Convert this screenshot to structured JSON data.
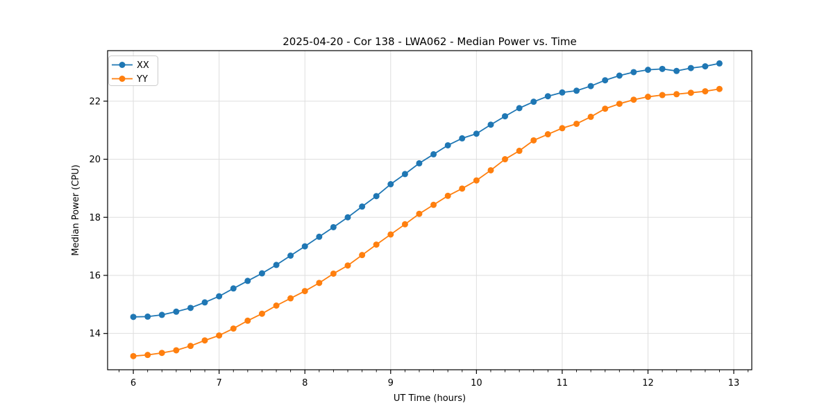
{
  "figure": {
    "background": "#ffffff",
    "grid_color": "#dedede",
    "spine_color": "#000000",
    "text_color": "#000000"
  },
  "legend": {
    "position": "upper-left",
    "border_color": "#cccccc",
    "background": "#ffffff"
  },
  "chart_data": {
    "type": "line",
    "title": "2025-04-20 - Cor 138 - LWA062 - Median Power vs. Time",
    "xlabel": "UT Time (hours)",
    "ylabel": "Median Power (CPU)",
    "xlim": [
      5.7,
      13.21
    ],
    "ylim": [
      12.75,
      23.74
    ],
    "x_ticks": [
      6,
      7,
      8,
      9,
      10,
      11,
      12,
      13
    ],
    "y_ticks": [
      14,
      16,
      18,
      20,
      22
    ],
    "x_minor_tick_step": 0.16667,
    "grid": true,
    "legend_position": "upper left",
    "marker": "circle",
    "x": [
      6.0,
      6.167,
      6.333,
      6.5,
      6.667,
      6.833,
      7.0,
      7.167,
      7.333,
      7.5,
      7.667,
      7.833,
      8.0,
      8.167,
      8.333,
      8.5,
      8.667,
      8.833,
      9.0,
      9.167,
      9.333,
      9.5,
      9.667,
      9.833,
      10.0,
      10.167,
      10.333,
      10.5,
      10.667,
      10.833,
      11.0,
      11.167,
      11.333,
      11.5,
      11.667,
      11.833,
      12.0,
      12.167,
      12.333,
      12.5,
      12.667,
      12.833
    ],
    "series": [
      {
        "name": "XX",
        "color": "#1f77b4",
        "values": [
          14.57,
          14.58,
          14.64,
          14.75,
          14.88,
          15.07,
          15.28,
          15.55,
          15.81,
          16.07,
          16.36,
          16.68,
          17.0,
          17.33,
          17.66,
          18.0,
          18.37,
          18.73,
          19.14,
          19.49,
          19.86,
          20.17,
          20.48,
          20.72,
          20.88,
          21.19,
          21.48,
          21.76,
          21.98,
          22.17,
          22.3,
          22.36,
          22.52,
          22.72,
          22.88,
          23.0,
          23.08,
          23.11,
          23.04,
          23.14,
          23.2,
          23.3
        ]
      },
      {
        "name": "YY",
        "color": "#ff7f0e",
        "values": [
          13.22,
          13.26,
          13.33,
          13.42,
          13.57,
          13.76,
          13.93,
          14.17,
          14.44,
          14.68,
          14.96,
          15.21,
          15.46,
          15.74,
          16.06,
          16.34,
          16.7,
          17.06,
          17.41,
          17.76,
          18.12,
          18.43,
          18.74,
          18.99,
          19.27,
          19.62,
          20.0,
          20.29,
          20.65,
          20.86,
          21.07,
          21.22,
          21.46,
          21.74,
          21.91,
          22.05,
          22.15,
          22.21,
          22.24,
          22.29,
          22.34,
          22.42
        ]
      }
    ]
  }
}
